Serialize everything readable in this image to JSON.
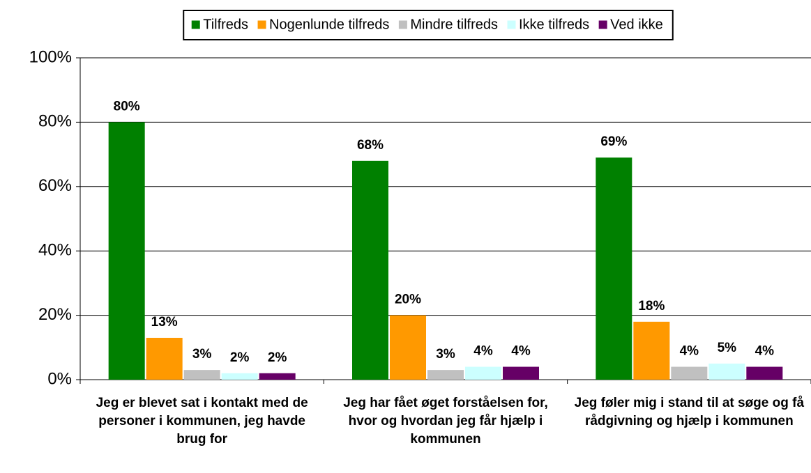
{
  "chart_data": {
    "type": "bar",
    "categories": [
      "Jeg er blevet sat i kontakt med de personer i kommunen, jeg havde brug for",
      "Jeg har fået øget forståelsen for, hvor og hvordan jeg får hjælp i kommunen",
      "Jeg  føler mig i stand til at søge og få rådgivning og hjælp i kommunen"
    ],
    "series": [
      {
        "name": "Tilfreds",
        "color": "#008000",
        "values": [
          80,
          68,
          69
        ],
        "value_labels": [
          "80%",
          "68%",
          "69%"
        ]
      },
      {
        "name": "Nogenlunde tilfreds",
        "color": "#ff9900",
        "values": [
          13,
          20,
          18
        ],
        "value_labels": [
          "13%",
          "20%",
          "18%"
        ]
      },
      {
        "name": "Mindre tilfreds",
        "color": "#c0c0c0",
        "values": [
          3,
          3,
          4
        ],
        "value_labels": [
          "3%",
          "3%",
          "4%"
        ]
      },
      {
        "name": "Ikke tilfreds",
        "color": "#ccffff",
        "values": [
          2,
          4,
          5
        ],
        "value_labels": [
          "2%",
          "4%",
          "5%"
        ]
      },
      {
        "name": "Ved ikke",
        "color": "#660066",
        "values": [
          2,
          4,
          4
        ],
        "value_labels": [
          "2%",
          "4%",
          "4%"
        ]
      }
    ],
    "ylim": [
      0,
      100
    ],
    "yticks": [
      {
        "value": 0,
        "label": "0%"
      },
      {
        "value": 20,
        "label": "20%"
      },
      {
        "value": 40,
        "label": "40%"
      },
      {
        "value": 60,
        "label": "60%"
      },
      {
        "value": 80,
        "label": "80%"
      },
      {
        "value": 100,
        "label": "100%"
      }
    ],
    "grid": true,
    "legend": "top"
  }
}
